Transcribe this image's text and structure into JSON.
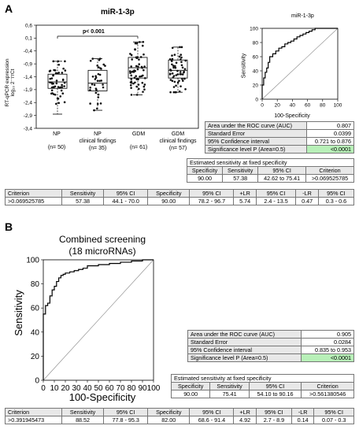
{
  "panel_a": {
    "letter": "A",
    "box_title": "miR-1-3p",
    "y_label_line1": "RT-qPCR expression",
    "y_label_line2": "log₁₀ 2⁻ᴛᴛCt",
    "significance": "p< 0.001",
    "y_ticks": [
      "0,6",
      "0,1",
      "-0,4",
      "-0,9",
      "-1,4",
      "-1,9",
      "-2,4",
      "-2,9",
      "-3,4"
    ],
    "groups": [
      {
        "name": "NP",
        "n": "(n= 50)",
        "q1": -1.85,
        "median": -1.6,
        "q3": -1.3,
        "min": -2.85,
        "max": -0.8
      },
      {
        "name": "NP\nclinical findings",
        "n": "(n= 35)",
        "q1": -1.95,
        "median": -1.65,
        "q3": -1.15,
        "min": -2.7,
        "max": -0.7
      },
      {
        "name": "GDM",
        "n": "(n= 61)",
        "q1": -1.45,
        "median": -1.05,
        "q3": -0.65,
        "min": -2.1,
        "max": -0.05
      },
      {
        "name": "GDM\nclinical findings",
        "n": "(n= 57)",
        "q1": -1.45,
        "median": -1.15,
        "q3": -0.75,
        "min": -2.0,
        "max": -0.25
      }
    ],
    "roc_title": "miR-1-3p",
    "roc_ylabel": "Sensitivity",
    "roc_xlabel": "100-Specificity",
    "roc_ticks": [
      "0",
      "20",
      "40",
      "60",
      "80",
      "100"
    ],
    "stats": [
      {
        "label": "Area under the ROC curve (AUC)",
        "value": "0.807"
      },
      {
        "label": "Standard Error",
        "value": "0.0399"
      },
      {
        "label": "95% Confidence interval",
        "value": "0.721 to 0.876"
      },
      {
        "label": "Significance level P (Area=0.5)",
        "value": "<0.0001"
      }
    ],
    "fixed_title": "Estimated sensitivity at fixed specificity",
    "fixed_headers": [
      "Specificity",
      "Sensitivity",
      "95% CI",
      "Criterion"
    ],
    "fixed_row": [
      "90.00",
      "57.38",
      "42.62 to 75.41",
      ">0.069525785"
    ],
    "crit_headers": [
      "Criterion",
      "Sensitivity",
      "95% CI",
      "Specificity",
      "95% CI",
      "+LR",
      "95% CI",
      "-LR",
      "95% CI"
    ],
    "crit_row": [
      ">0.069525785",
      "57.38",
      "44.1 - 70.0",
      "90.00",
      "78.2 - 96.7",
      "5.74",
      "2.4 - 13.5",
      "0.47",
      "0.3 - 0.6"
    ]
  },
  "panel_b": {
    "letter": "B",
    "roc_title_line1": "Combined screening",
    "roc_title_line2": "(18 microRNAs)",
    "roc_ylabel": "Sensitivity",
    "roc_xlabel": "100-Specificity",
    "roc_ticks": [
      "0",
      "10",
      "20",
      "30",
      "40",
      "50",
      "60",
      "70",
      "80",
      "90",
      "100"
    ],
    "roc_yticks": [
      "0",
      "20",
      "40",
      "60",
      "80",
      "100"
    ],
    "stats": [
      {
        "label": "Area under the ROC curve (AUC)",
        "value": "0.905"
      },
      {
        "label": "Standard Error",
        "value": "0.0284"
      },
      {
        "label": "95% Confidence interval",
        "value": "0.835 to 0.953"
      },
      {
        "label": "Significance level P (Area=0.5)",
        "value": "<0.0001"
      }
    ],
    "fixed_title": "Estimated sensitivity at fixed specificity",
    "fixed_headers": [
      "Specificity",
      "Sensitivity",
      "95% CI",
      "Criterion"
    ],
    "fixed_row": [
      "90.00",
      "75.41",
      "54.10 to 90.16",
      ">0.561380546"
    ],
    "crit_headers": [
      "Criterion",
      "Sensitivity",
      "95% CI",
      "Specificity",
      "95% CI",
      "+LR",
      "95% CI",
      "-LR",
      "95% CI"
    ],
    "crit_row": [
      ">0.391945473",
      "88.52",
      "77.8 - 95.3",
      "82.00",
      "68.6 - 91.4",
      "4.92",
      "2.7 - 8.9",
      "0.14",
      "0.07 - 0.3"
    ]
  },
  "chart_data": [
    {
      "type": "box",
      "title": "miR-1-3p",
      "ylabel": "RT-qPCR expression",
      "ylim": [
        -3.4,
        0.6
      ],
      "categories": [
        "NP",
        "NP clinical findings",
        "GDM",
        "GDM clinical findings"
      ]
    },
    {
      "type": "line",
      "title": "miR-1-3p",
      "xlabel": "100-Specificity",
      "ylabel": "Sensitivity",
      "xlim": [
        0,
        100
      ],
      "ylim": [
        0,
        100
      ],
      "x": [
        0,
        0,
        2,
        4,
        6,
        8,
        10,
        10,
        14,
        18,
        22,
        26,
        30,
        34,
        38,
        42,
        46,
        50,
        54,
        58,
        62,
        66,
        70,
        80,
        90,
        100
      ],
      "y": [
        0,
        20,
        30,
        38,
        44,
        52,
        57,
        60,
        64,
        68,
        72,
        74,
        78,
        80,
        82,
        85,
        88,
        90,
        92,
        94,
        96,
        98,
        100,
        100,
        100,
        100
      ]
    },
    {
      "type": "line",
      "title": "Combined screening (18 microRNAs)",
      "xlabel": "100-Specificity",
      "ylabel": "Sensitivity",
      "xlim": [
        0,
        100
      ],
      "ylim": [
        0,
        100
      ],
      "x": [
        0,
        0,
        2,
        4,
        6,
        8,
        10,
        12,
        14,
        16,
        18,
        20,
        24,
        28,
        32,
        36,
        40,
        50,
        60,
        70,
        80,
        90,
        100
      ],
      "y": [
        0,
        55,
        62,
        64,
        70,
        75,
        78,
        82,
        85,
        87,
        88,
        89,
        90,
        91,
        92,
        93,
        95,
        96,
        97,
        98,
        99,
        100,
        100
      ]
    }
  ]
}
